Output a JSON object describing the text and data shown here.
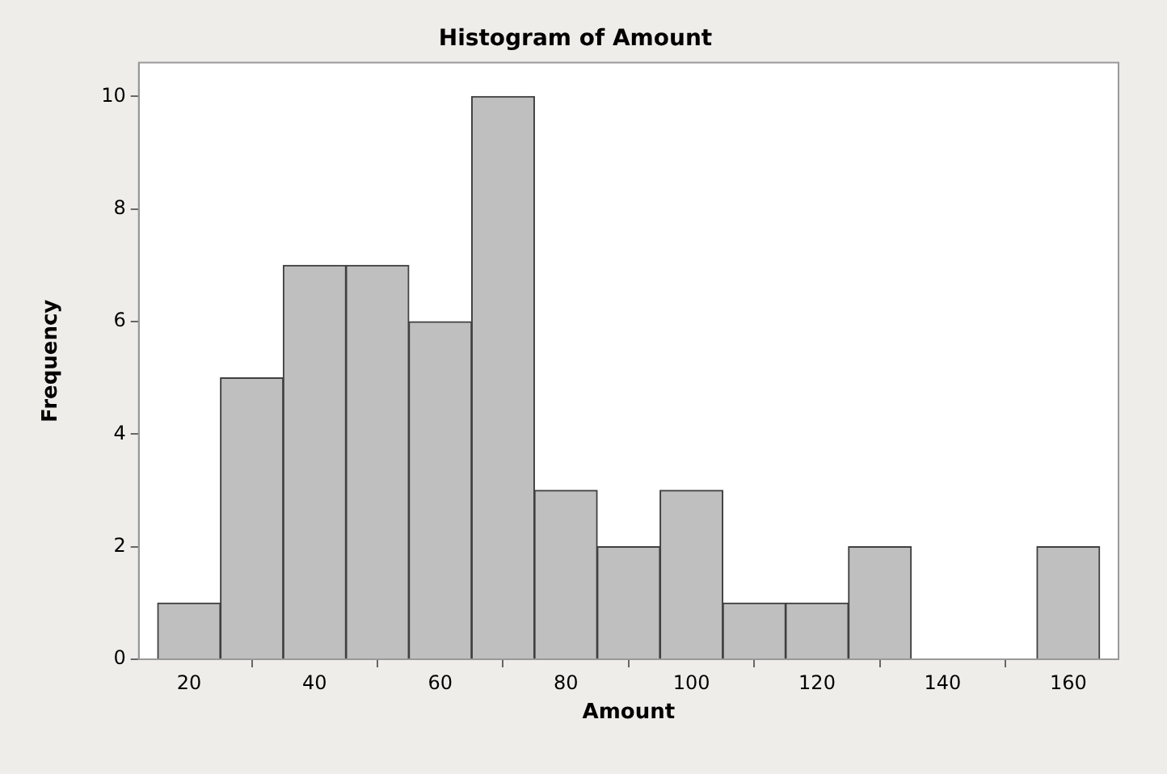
{
  "chart_data": {
    "type": "histogram",
    "title": "Histogram of Amount",
    "xlabel": "Amount",
    "ylabel": "Frequency",
    "bins": [
      15,
      25,
      35,
      45,
      55,
      65,
      75,
      85,
      95,
      105,
      115,
      125,
      135,
      145,
      155,
      165
    ],
    "values": [
      1,
      5,
      7,
      7,
      6,
      10,
      3,
      2,
      3,
      1,
      1,
      2,
      0,
      0,
      2
    ],
    "color": "#bfbfbf",
    "xlim": [
      12,
      168
    ],
    "xticks": [
      20,
      40,
      60,
      80,
      100,
      120,
      140,
      160
    ],
    "ylim": [
      0,
      10.6
    ],
    "yticks": [
      0,
      2,
      4,
      6,
      8,
      10
    ],
    "grid": false,
    "legend": false
  }
}
